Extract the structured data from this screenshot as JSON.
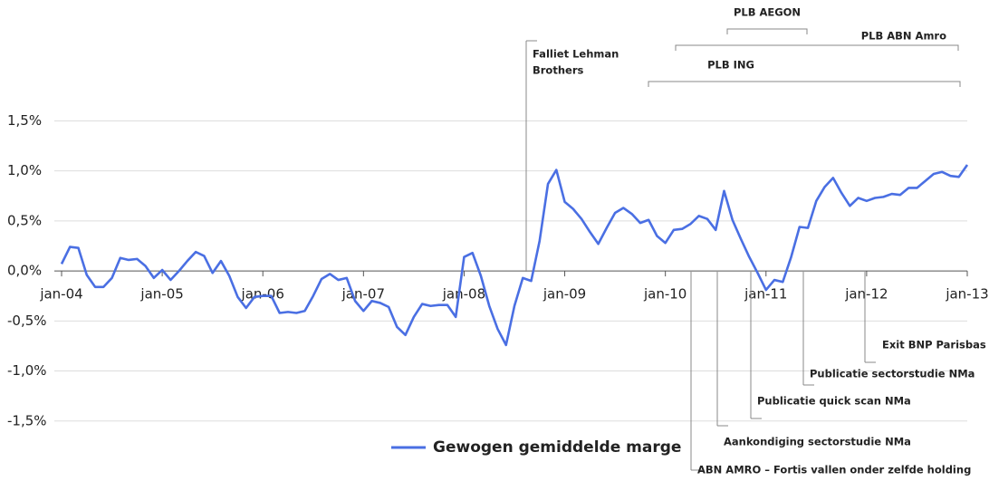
{
  "chart_data": {
    "type": "line",
    "categories": [
      "jan-04",
      null,
      null,
      null,
      null,
      null,
      null,
      null,
      null,
      null,
      null,
      null,
      "jan-05",
      null,
      null,
      null,
      null,
      null,
      null,
      null,
      null,
      null,
      null,
      null,
      "jan-06",
      null,
      null,
      null,
      null,
      null,
      null,
      null,
      null,
      null,
      null,
      null,
      "jan-07",
      null,
      null,
      null,
      null,
      null,
      null,
      null,
      null,
      null,
      null,
      null,
      "jan-08",
      null,
      null,
      null,
      null,
      null,
      null,
      null,
      null,
      null,
      null,
      null,
      "jan-09",
      null,
      null,
      null,
      null,
      null,
      null,
      null,
      null,
      null,
      null,
      null,
      "jan-10",
      null,
      null,
      null,
      null,
      null,
      null,
      null,
      null,
      null,
      null,
      null,
      "jan-11",
      null,
      null,
      null,
      null,
      null,
      null,
      null,
      null,
      null,
      null,
      null,
      "jan-12",
      null,
      null,
      null,
      null,
      null,
      null,
      null,
      null,
      null,
      null,
      null,
      "jan-13"
    ],
    "series": [
      {
        "name": "Gewogen gemiddelde marge",
        "color": "#4a6fe3",
        "values": [
          0.07,
          0.24,
          0.23,
          -0.04,
          -0.16,
          -0.16,
          -0.07,
          0.13,
          0.11,
          0.12,
          0.05,
          -0.07,
          0.01,
          -0.09,
          0.0,
          0.1,
          0.19,
          0.15,
          -0.02,
          0.1,
          -0.05,
          -0.26,
          -0.37,
          -0.26,
          -0.25,
          -0.25,
          -0.42,
          -0.41,
          -0.42,
          -0.4,
          -0.25,
          -0.08,
          -0.03,
          -0.09,
          -0.07,
          -0.3,
          -0.4,
          -0.3,
          -0.32,
          -0.36,
          -0.56,
          -0.64,
          -0.46,
          -0.33,
          -0.35,
          -0.34,
          -0.34,
          -0.46,
          0.14,
          0.18,
          -0.05,
          -0.35,
          -0.58,
          -0.74,
          -0.35,
          -0.07,
          -0.1,
          0.3,
          0.87,
          1.01,
          0.69,
          0.62,
          0.52,
          0.39,
          0.27,
          0.43,
          0.58,
          0.63,
          0.57,
          0.48,
          0.51,
          0.35,
          0.28,
          0.41,
          0.42,
          0.47,
          0.55,
          0.52,
          0.41,
          0.8,
          0.51,
          0.32,
          0.14,
          -0.02,
          -0.19,
          -0.09,
          -0.11,
          0.14,
          0.44,
          0.43,
          0.7,
          0.84,
          0.93,
          0.78,
          0.65,
          0.73,
          0.7,
          0.73,
          0.74,
          0.77,
          0.76,
          0.83,
          0.83,
          0.9,
          0.97,
          0.99,
          0.95,
          0.94,
          1.06
        ]
      }
    ],
    "ylim": [
      -2.0,
      2.5
    ],
    "yticks": [
      {
        "value": 1.5,
        "label": "1,5%"
      },
      {
        "value": 1.0,
        "label": "1,0%"
      },
      {
        "value": 0.5,
        "label": "0,5%"
      },
      {
        "value": 0,
        "label": "0,0%"
      },
      {
        "value": -0.5,
        "label": "-0,5%"
      },
      {
        "value": -1.0,
        "label": "-1,0%"
      },
      {
        "value": -1.5,
        "label": "-1,5%"
      }
    ],
    "grid": true,
    "periods": [
      "PLB AEGON",
      "PLB ABN Amro",
      "PLB ING"
    ],
    "events": [
      [
        "Falliet Lehman",
        "Brothers"
      ],
      [
        "ABN AMRO – Fortis vallen onder zelfde holding"
      ],
      [
        "Aankondiging sectorstudie NMa"
      ],
      [
        "Publicatie quick scan NMa"
      ],
      [
        "Publicatie sectorstudie NMa"
      ],
      [
        "Exit BNP Parisbas"
      ]
    ]
  }
}
